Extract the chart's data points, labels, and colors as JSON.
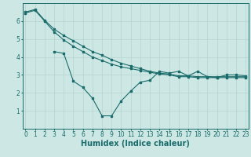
{
  "bg_color": "#cde8e4",
  "line_color": "#1a6b6b",
  "grid_color": "#b8d8d4",
  "xlabel": "Humidex (Indice chaleur)",
  "xlabel_fontsize": 7,
  "tick_fontsize": 5.5,
  "xlim": [
    -0.3,
    23.3
  ],
  "ylim": [
    0,
    7
  ],
  "yticks": [
    1,
    2,
    3,
    4,
    5,
    6
  ],
  "xticks": [
    0,
    1,
    2,
    3,
    4,
    5,
    6,
    7,
    8,
    9,
    10,
    11,
    12,
    13,
    14,
    15,
    16,
    17,
    18,
    19,
    20,
    21,
    22,
    23
  ],
  "line1_x": [
    0,
    1,
    2,
    3,
    4,
    5,
    6,
    7,
    8,
    9,
    10,
    11,
    12,
    13,
    14,
    15,
    16,
    17,
    18,
    19,
    20,
    21,
    22,
    23
  ],
  "line1_y": [
    6.5,
    6.65,
    6.05,
    5.55,
    5.2,
    4.9,
    4.6,
    4.3,
    4.1,
    3.85,
    3.65,
    3.5,
    3.35,
    3.2,
    3.1,
    3.05,
    2.95,
    2.95,
    2.9,
    2.9,
    2.9,
    2.9,
    2.9,
    2.9
  ],
  "line2_x": [
    0,
    1,
    2,
    3,
    4,
    5,
    6,
    7,
    8,
    9,
    10,
    11,
    12,
    13,
    14,
    15,
    16,
    17,
    18,
    19,
    20,
    21,
    22,
    23
  ],
  "line2_y": [
    6.45,
    6.6,
    6.0,
    5.4,
    4.95,
    4.6,
    4.3,
    4.0,
    3.8,
    3.6,
    3.45,
    3.35,
    3.25,
    3.15,
    3.05,
    3.0,
    2.9,
    2.9,
    2.85,
    2.85,
    2.85,
    2.85,
    2.85,
    2.85
  ],
  "line3_x": [
    3,
    4,
    5,
    6,
    7,
    8,
    9,
    10,
    11,
    12,
    13,
    14,
    15,
    16,
    17,
    18,
    19,
    20,
    21,
    22,
    23
  ],
  "line3_y": [
    4.3,
    4.2,
    2.65,
    2.3,
    1.7,
    0.72,
    0.72,
    1.55,
    2.1,
    2.6,
    2.7,
    3.2,
    3.1,
    3.2,
    2.95,
    3.2,
    2.9,
    2.85,
    3.0,
    3.0,
    2.95
  ]
}
